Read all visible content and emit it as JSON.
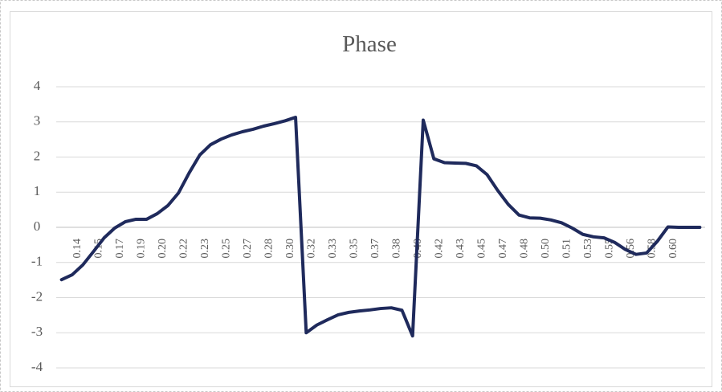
{
  "chart_data": {
    "type": "line",
    "title": "Phase",
    "categories": [
      null,
      "0.14",
      null,
      "0.15",
      null,
      "0.17",
      null,
      "0.19",
      null,
      "0.20",
      null,
      "0.22",
      null,
      "0.23",
      null,
      "0.25",
      null,
      "0.27",
      null,
      "0.28",
      null,
      "0.30",
      null,
      "0.32",
      null,
      "0.33",
      null,
      "0.35",
      null,
      "0.37",
      null,
      "0.38",
      null,
      "0.40",
      null,
      "0.42",
      null,
      "0.43",
      null,
      "0.45",
      null,
      "0.47",
      null,
      "0.48",
      null,
      "0.50",
      null,
      "0.51",
      null,
      "0.53",
      null,
      "0.55",
      null,
      "0.56",
      null,
      "0.58",
      null,
      "0.60",
      null,
      null,
      null
    ],
    "series": [
      {
        "color": "#1f2a5c",
        "values": [
          -1.49,
          -1.35,
          -1.07,
          -0.69,
          -0.3,
          -0.02,
          0.16,
          0.23,
          0.23,
          0.39,
          0.62,
          0.98,
          1.55,
          2.06,
          2.35,
          2.51,
          2.63,
          2.72,
          2.79,
          2.88,
          2.95,
          3.03,
          3.13,
          -3.0,
          -2.78,
          -2.63,
          -2.49,
          -2.42,
          -2.38,
          -2.35,
          -2.31,
          -2.29,
          -2.36,
          -3.09,
          3.05,
          1.95,
          1.84,
          1.83,
          1.82,
          1.75,
          1.5,
          1.05,
          0.65,
          0.35,
          0.27,
          0.26,
          0.21,
          0.13,
          -0.02,
          -0.2,
          -0.27,
          -0.3,
          -0.43,
          -0.63,
          -0.77,
          -0.73,
          -0.4,
          0.01,
          0,
          0,
          0
        ]
      }
    ],
    "ylim": [
      -4,
      4
    ],
    "yticks": [
      -4,
      -3,
      -2,
      -1,
      0,
      1,
      2,
      3,
      4
    ],
    "grid": true
  }
}
